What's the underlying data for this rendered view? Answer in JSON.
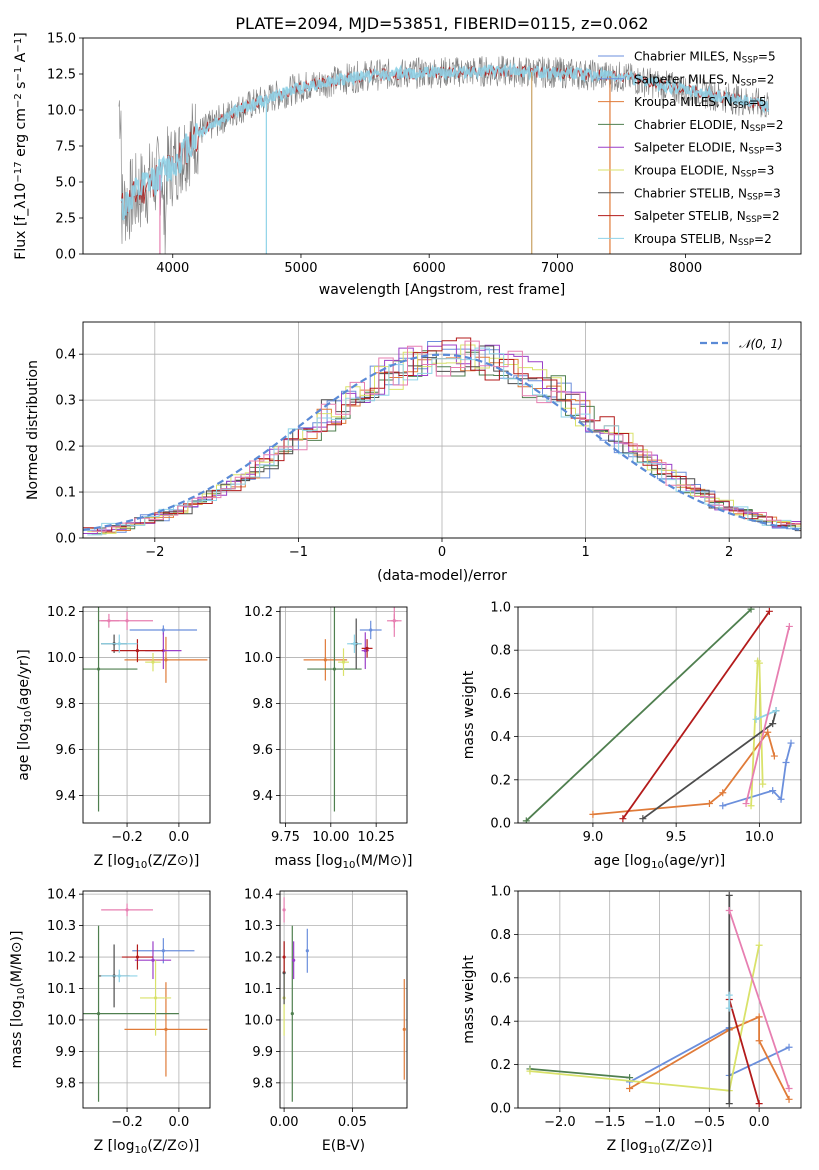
{
  "palette": [
    "#6b8fdc",
    "#e07b39",
    "#f08e2a",
    "#4f7f4f",
    "#9b3fc8",
    "#d9e26a",
    "#4d4d4d",
    "#b31b1b",
    "#8fd3e8",
    "#e77fb1"
  ],
  "chart_data": [
    {
      "type": "line",
      "title": "PLATE=2094, MJD=53851, FIBERID=0115, z=0.062",
      "xlabel": "wavelength [Angstrom, rest frame]",
      "ylabel": "Flux [f_λ 10^-17 erg cm^-2 s^-1 A^-1]",
      "xlim": [
        3300,
        8900
      ],
      "ylim": [
        0,
        15
      ],
      "xticks": [
        "4000",
        "5000",
        "6000",
        "7000",
        "8000"
      ],
      "yticks": [
        "0.0",
        "2.5",
        "5.0",
        "7.5",
        "10.0",
        "12.5",
        "15.0"
      ],
      "legend": [
        "Chabrier MILES, N_SSP=5",
        "Salpeter MILES, N_SSP=2",
        "Kroupa MILES, N_SSP=5",
        "Chabrier ELODIE, N_SSP=2",
        "Salpeter ELODIE, N_SSP=3",
        "Kroupa ELODIE, N_SSP=3",
        "Chabrier STELIB, N_SSP=3",
        "Salpeter STELIB, N_SSP=2",
        "Kroupa STELIB, N_SSP=2"
      ],
      "legend_loc": "top-right",
      "continuum": [
        [
          3600,
          3.2
        ],
        [
          3800,
          4.8
        ],
        [
          4000,
          6.2
        ],
        [
          4200,
          8.4
        ],
        [
          4500,
          10.0
        ],
        [
          5000,
          11.6
        ],
        [
          5500,
          12.4
        ],
        [
          6000,
          12.6
        ],
        [
          6500,
          12.7
        ],
        [
          7000,
          12.6
        ],
        [
          7500,
          12.3
        ],
        [
          8000,
          11.4
        ],
        [
          8650,
          10.3
        ]
      ]
    },
    {
      "type": "histogram",
      "xlabel": "(data-model)/error",
      "ylabel": "Normed distribution",
      "xlim": [
        -2.5,
        2.5
      ],
      "ylim": [
        0,
        0.47
      ],
      "xticks": [
        "−2",
        "−1",
        "0",
        "1",
        "2"
      ],
      "yticks": [
        "0.0",
        "0.1",
        "0.2",
        "0.3",
        "0.4"
      ],
      "bin_width": 0.1,
      "legend": [
        "𝒩(0, 1)"
      ],
      "grid": true
    },
    {
      "type": "errorbar",
      "xlabel": "Z [log10(Z/Z⊙)]",
      "ylabel": "age  [log10(age/yr)]",
      "xlim": [
        -0.37,
        0.12
      ],
      "ylim": [
        9.28,
        10.22
      ],
      "xticks": [
        "−0.2",
        "0.0"
      ],
      "yticks": [
        "9.4",
        "9.6",
        "9.8",
        "10.0",
        "10.2"
      ],
      "points": [
        {
          "x": -0.06,
          "y": 10.12,
          "xerr": 0.13,
          "yerr": 0.02
        },
        {
          "x": -0.27,
          "y": 10.16,
          "xerr": 0.04,
          "yerr": 0.03
        },
        {
          "x": -0.05,
          "y": 9.99,
          "xerr": 0.16,
          "yerr": 0.1
        },
        {
          "x": -0.31,
          "y": 9.95,
          "xerr": 0.15,
          "yerr": 0.62
        },
        {
          "x": -0.06,
          "y": 10.03,
          "xerr": 0.07,
          "yerr": 0.08
        },
        {
          "x": -0.1,
          "y": 9.98,
          "xerr": 0.03,
          "yerr": 0.04
        },
        {
          "x": -0.25,
          "y": 10.06,
          "xerr": 0.05,
          "yerr": 0.04
        },
        {
          "x": -0.16,
          "y": 10.03,
          "xerr": 0.1,
          "yerr": 0.05
        },
        {
          "x": -0.23,
          "y": 10.06,
          "xerr": 0.07,
          "yerr": 0.04
        },
        {
          "x": -0.2,
          "y": 10.16,
          "xerr": 0.1,
          "yerr": 0.04
        }
      ]
    },
    {
      "type": "errorbar",
      "xlabel": "mass [log10(M/M⊙)]",
      "ylabel": "",
      "xlim": [
        9.72,
        10.42
      ],
      "ylim": [
        9.28,
        10.22
      ],
      "xticks": [
        "9.75",
        "10.00",
        "10.25"
      ],
      "yticks": [
        "9.4",
        "9.6",
        "9.8",
        "10.0",
        "10.2"
      ],
      "points": [
        {
          "x": 10.22,
          "y": 10.12,
          "xerr": 0.06,
          "yerr": 0.04
        },
        {
          "x": 10.35,
          "y": 10.16,
          "xerr": 0.04,
          "yerr": 0.03
        },
        {
          "x": 9.97,
          "y": 9.99,
          "xerr": 0.12,
          "yerr": 0.09
        },
        {
          "x": 10.02,
          "y": 9.95,
          "xerr": 0.15,
          "yerr": 0.62
        },
        {
          "x": 10.19,
          "y": 10.03,
          "xerr": 0.02,
          "yerr": 0.08
        },
        {
          "x": 10.07,
          "y": 9.98,
          "xerr": 0.03,
          "yerr": 0.06
        },
        {
          "x": 10.14,
          "y": 10.06,
          "xerr": 0.03,
          "yerr": 0.11
        },
        {
          "x": 10.2,
          "y": 10.04,
          "xerr": 0.03,
          "yerr": 0.04
        },
        {
          "x": 10.13,
          "y": 10.06,
          "xerr": 0.04,
          "yerr": 0.04
        },
        {
          "x": 10.35,
          "y": 10.16,
          "xerr": 0.02,
          "yerr": 0.07
        }
      ]
    },
    {
      "type": "line",
      "xlabel": "age  [log10(age/yr)]",
      "ylabel": "mass weight",
      "xlim": [
        8.55,
        10.25
      ],
      "ylim": [
        0,
        1
      ],
      "xticks": [
        "9.0",
        "9.5",
        "10.0"
      ],
      "yticks": [
        "0.0",
        "0.2",
        "0.4",
        "0.6",
        "0.8",
        "1.0"
      ],
      "series": [
        {
          "x": [
            9.78,
            10.08,
            10.13,
            10.16,
            10.19
          ],
          "y": [
            0.08,
            0.15,
            0.11,
            0.28,
            0.37
          ]
        },
        {
          "x": [
            9.0,
            9.7,
            9.78,
            10.05,
            10.09
          ],
          "y": [
            0.04,
            0.09,
            0.14,
            0.42,
            0.31
          ]
        },
        {
          "x": [
            8.6,
            9.95
          ],
          "y": [
            0.01,
            0.99
          ]
        },
        {
          "x": [
            9.95,
            9.99,
            10.0,
            10.02
          ],
          "y": [
            0.08,
            0.75,
            0.74,
            0.18
          ]
        },
        {
          "x": [
            9.3,
            10.08,
            10.1
          ],
          "y": [
            0.02,
            0.46,
            0.52
          ]
        },
        {
          "x": [
            9.18,
            10.06
          ],
          "y": [
            0.02,
            0.98
          ]
        },
        {
          "x": [
            9.98,
            10.1
          ],
          "y": [
            0.48,
            0.52
          ]
        },
        {
          "x": [
            9.92,
            10.18
          ],
          "y": [
            0.09,
            0.91
          ]
        }
      ]
    },
    {
      "type": "errorbar",
      "xlabel": "Z [log10(Z/Z⊙)]",
      "ylabel": "mass [log10(M/M⊙)]",
      "xlim": [
        -0.37,
        0.12
      ],
      "ylim": [
        9.72,
        10.41
      ],
      "xticks": [
        "−0.2",
        "0.0"
      ],
      "yticks": [
        "9.8",
        "9.9",
        "10.0",
        "10.1",
        "10.2",
        "10.3",
        "10.4"
      ],
      "points": [
        {
          "x": -0.06,
          "y": 10.22,
          "xerr": 0.12,
          "yerr": 0.04
        },
        {
          "x": -0.2,
          "y": 10.35,
          "xerr": 0.1,
          "yerr": 0.02
        },
        {
          "x": -0.05,
          "y": 9.97,
          "xerr": 0.16,
          "yerr": 0.15
        },
        {
          "x": -0.31,
          "y": 10.02,
          "xerr": 0.31,
          "yerr": 0.28
        },
        {
          "x": -0.1,
          "y": 10.19,
          "xerr": 0.07,
          "yerr": 0.06
        },
        {
          "x": -0.09,
          "y": 10.07,
          "xerr": 0.06,
          "yerr": 0.12
        },
        {
          "x": -0.25,
          "y": 10.14,
          "xerr": 0.06,
          "yerr": 0.1
        },
        {
          "x": -0.16,
          "y": 10.2,
          "xerr": 0.06,
          "yerr": 0.04
        },
        {
          "x": -0.23,
          "y": 10.14,
          "xerr": 0.07,
          "yerr": 0.02
        }
      ]
    },
    {
      "type": "errorbar",
      "xlabel": "E(B-V)",
      "ylabel": "",
      "xlim": [
        -0.003,
        0.09
      ],
      "ylim": [
        9.72,
        10.41
      ],
      "xticks": [
        "0.00",
        "0.05"
      ],
      "yticks": [
        "9.8",
        "9.9",
        "10.0",
        "10.1",
        "10.2",
        "10.3",
        "10.4"
      ],
      "points": [
        {
          "x": 0.017,
          "y": 10.22,
          "yerr": 0.07
        },
        {
          "x": 0.0,
          "y": 10.35,
          "yerr": 0.04
        },
        {
          "x": 0.088,
          "y": 9.97,
          "yerr": 0.16
        },
        {
          "x": 0.006,
          "y": 10.02,
          "yerr": 0.28
        },
        {
          "x": 0.007,
          "y": 10.19,
          "yerr": 0.06
        },
        {
          "x": 0.0,
          "y": 10.07,
          "yerr": 0.12
        },
        {
          "x": 0.0,
          "y": 10.15,
          "yerr": 0.1
        },
        {
          "x": 0.0,
          "y": 10.2,
          "yerr": 0.05
        }
      ]
    },
    {
      "type": "line",
      "xlabel": "Z [log10(Z/Z⊙)]",
      "ylabel": "mass weight",
      "xlim": [
        -2.42,
        0.42
      ],
      "ylim": [
        0,
        1
      ],
      "xticks": [
        "−2.0",
        "−1.5",
        "−1.0",
        "−0.5",
        "0.0"
      ],
      "yticks": [
        "0.0",
        "0.2",
        "0.4",
        "0.6",
        "0.8",
        "1.0"
      ],
      "series": [
        {
          "x": [
            -1.3,
            -0.3,
            -0.3,
            0.3
          ],
          "y": [
            0.12,
            0.37,
            0.15,
            0.28
          ]
        },
        {
          "x": [
            -1.3,
            -0.3,
            0.0,
            0.0,
            0.3
          ],
          "y": [
            0.09,
            0.36,
            0.42,
            0.31,
            0.04
          ]
        },
        {
          "x": [
            -2.3,
            -1.3
          ],
          "y": [
            0.18,
            0.14
          ]
        },
        {
          "x": [
            -2.3,
            -0.3,
            0.0
          ],
          "y": [
            0.17,
            0.08,
            0.75
          ]
        },
        {
          "x": [
            -0.3,
            -0.3
          ],
          "y": [
            0.02,
            0.98
          ]
        },
        {
          "x": [
            -0.3,
            0.0
          ],
          "y": [
            0.5,
            0.02
          ]
        },
        {
          "x": [
            -0.3,
            -0.3
          ],
          "y": [
            0.46,
            0.52
          ]
        },
        {
          "x": [
            -0.3,
            0.3
          ],
          "y": [
            0.91,
            0.09
          ]
        }
      ]
    }
  ]
}
